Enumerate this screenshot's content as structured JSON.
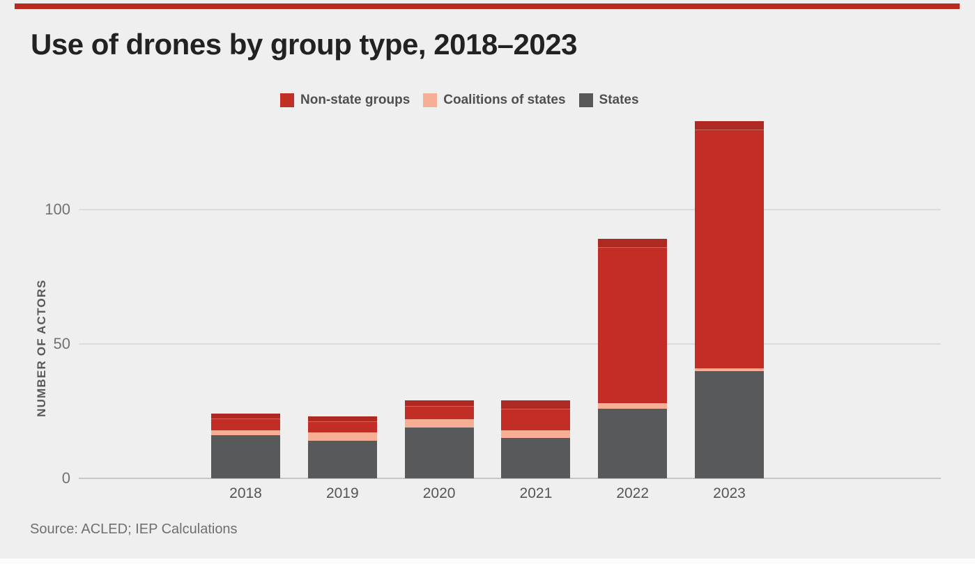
{
  "page": {
    "background": "#efefef",
    "accent_rule_color": "#b82a20",
    "bottom_strip_color": "#fcfcfc"
  },
  "title": "Use of drones by group type, 2018–2023",
  "legend": {
    "items": [
      {
        "label": "Non-state groups",
        "color": "#c22e26"
      },
      {
        "label": "Coalitions of states",
        "color": "#f6ae95"
      },
      {
        "label": "States",
        "color": "#58595b"
      }
    ]
  },
  "y_axis": {
    "label": "NUMBER OF ACTORS"
  },
  "source": "Source: ACLED; IEP Calculations",
  "chart_data": {
    "type": "bar",
    "stacked": true,
    "categories": [
      "2018",
      "2019",
      "2020",
      "2021",
      "2022",
      "2023"
    ],
    "series": [
      {
        "name": "States",
        "color": "#58595b",
        "values": [
          16,
          14,
          19,
          15,
          26,
          40
        ]
      },
      {
        "name": "Coalitions of states",
        "color": "#f6ae95",
        "values": [
          2,
          3,
          3,
          3,
          2,
          1
        ]
      },
      {
        "name": "Non-state groups",
        "color": "#c22e26",
        "values": [
          6,
          6,
          7,
          11,
          61,
          92
        ]
      }
    ],
    "totals": [
      24,
      23,
      29,
      29,
      89,
      133
    ],
    "title": "Use of drones by group type, 2018–2023",
    "xlabel": "",
    "ylabel": "NUMBER OF ACTORS",
    "ylim": [
      0,
      140
    ],
    "yticks": [
      0,
      50,
      100
    ],
    "grid": "horizontal",
    "legend_position": "top"
  }
}
